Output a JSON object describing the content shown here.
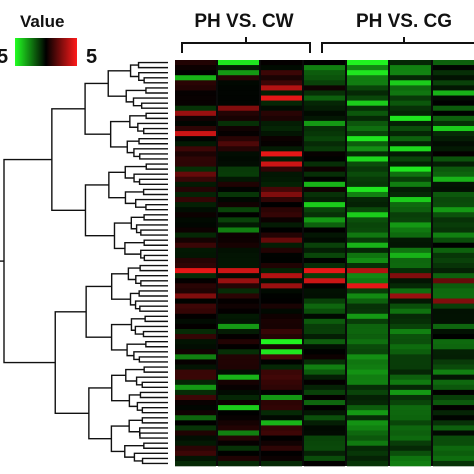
{
  "chart_data": {
    "type": "heatmap",
    "title": "",
    "legend": {
      "title": "Value",
      "min_label": "5",
      "max_label": "5",
      "placement": "top-left",
      "colors": {
        "low": "#22ff22",
        "mid": "#000000",
        "high": "#ff1a1a"
      }
    },
    "groups": [
      {
        "label": "PH VS. CW",
        "columns": 3
      },
      {
        "label": "PH VS. CG",
        "columns": 3
      }
    ],
    "columns": 7,
    "row_count": 80,
    "dendrogram": "left",
    "column_profiles": [
      {
        "base": 0.02,
        "spikes": [
          [
            3,
            -0.7
          ],
          [
            10,
            0.6
          ],
          [
            14,
            0.8
          ],
          [
            22,
            0.4
          ],
          [
            41,
            0.9
          ],
          [
            46,
            0.5
          ],
          [
            58,
            -0.5
          ],
          [
            64,
            -0.6
          ],
          [
            70,
            -0.4
          ]
        ]
      },
      {
        "base": -0.05,
        "spikes": [
          [
            0,
            -0.9
          ],
          [
            2,
            -0.6
          ],
          [
            9,
            0.5
          ],
          [
            16,
            0.3
          ],
          [
            33,
            -0.5
          ],
          [
            41,
            0.8
          ],
          [
            43,
            0.6
          ],
          [
            52,
            -0.6
          ],
          [
            62,
            -0.7
          ],
          [
            68,
            -0.8
          ],
          [
            73,
            -0.5
          ]
        ]
      },
      {
        "base": 0.05,
        "spikes": [
          [
            5,
            0.7
          ],
          [
            7,
            0.9
          ],
          [
            18,
            0.9
          ],
          [
            20,
            0.8
          ],
          [
            26,
            0.5
          ],
          [
            35,
            0.4
          ],
          [
            42,
            0.7
          ],
          [
            44,
            0.6
          ],
          [
            55,
            -0.95
          ],
          [
            57,
            -0.9
          ],
          [
            66,
            -0.6
          ],
          [
            71,
            -0.7
          ]
        ]
      },
      {
        "base": -0.15,
        "spikes": [
          [
            1,
            -0.5
          ],
          [
            12,
            -0.6
          ],
          [
            24,
            -0.7
          ],
          [
            28,
            -0.8
          ],
          [
            31,
            -0.6
          ],
          [
            41,
            0.9
          ],
          [
            43,
            0.8
          ],
          [
            48,
            -0.4
          ],
          [
            60,
            -0.5
          ],
          [
            67,
            -0.4
          ]
        ]
      },
      {
        "base": -0.35,
        "spikes": [
          [
            0,
            -0.95
          ],
          [
            2,
            -0.9
          ],
          [
            8,
            -0.8
          ],
          [
            15,
            -0.9
          ],
          [
            19,
            -0.85
          ],
          [
            25,
            -0.9
          ],
          [
            30,
            -0.8
          ],
          [
            36,
            -0.7
          ],
          [
            41,
            0.7
          ],
          [
            44,
            0.9
          ],
          [
            50,
            -0.6
          ],
          [
            63,
            -0.5
          ],
          [
            69,
            -0.6
          ]
        ]
      },
      {
        "base": -0.3,
        "spikes": [
          [
            4,
            -0.8
          ],
          [
            11,
            -0.9
          ],
          [
            17,
            -0.85
          ],
          [
            21,
            -0.9
          ],
          [
            27,
            -0.8
          ],
          [
            32,
            -0.6
          ],
          [
            38,
            -0.7
          ],
          [
            42,
            0.5
          ],
          [
            46,
            0.6
          ],
          [
            53,
            -0.5
          ],
          [
            65,
            -0.6
          ],
          [
            72,
            -0.4
          ]
        ]
      },
      {
        "base": -0.2,
        "spikes": [
          [
            6,
            -0.7
          ],
          [
            13,
            -0.8
          ],
          [
            23,
            -0.7
          ],
          [
            29,
            -0.6
          ],
          [
            34,
            -0.5
          ],
          [
            43,
            0.4
          ],
          [
            47,
            0.5
          ],
          [
            56,
            -0.4
          ],
          [
            61,
            -0.5
          ],
          [
            75,
            -0.3
          ]
        ]
      }
    ]
  }
}
